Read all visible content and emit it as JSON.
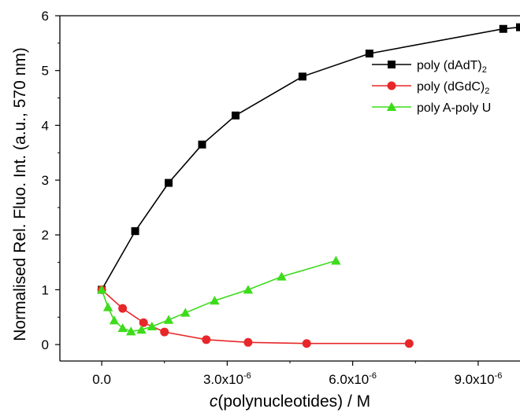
{
  "chart_data": {
    "type": "line",
    "title": "",
    "xlabel": {
      "italic": "c",
      "rest": "(polynucleotides) / M"
    },
    "ylabel": "Normalised Rel. Fluo. Int. (a.u., 570 nm)",
    "xlim": [
      -1e-06,
      1e-05
    ],
    "ylim": [
      -0.3,
      6
    ],
    "x_ticks": [
      {
        "value": 0,
        "mantissa": "0.0",
        "exponent": ""
      },
      {
        "value": 3e-06,
        "mantissa": "3.0x10",
        "exponent": "-6"
      },
      {
        "value": 6e-06,
        "mantissa": "6.0x10",
        "exponent": "-6"
      },
      {
        "value": 9e-06,
        "mantissa": "9.0x10",
        "exponent": "-6"
      }
    ],
    "y_ticks": [
      {
        "value": 0,
        "label": "0"
      },
      {
        "value": 1,
        "label": "1"
      },
      {
        "value": 2,
        "label": "2"
      },
      {
        "value": 3,
        "label": "3"
      },
      {
        "value": 4,
        "label": "4"
      },
      {
        "value": 5,
        "label": "5"
      },
      {
        "value": 6,
        "label": "6"
      }
    ],
    "grid": false,
    "legend_position": "top-right",
    "series": [
      {
        "name": "poly (dAdT)",
        "name_sub": "2",
        "color": "#000000",
        "marker": "square",
        "x": [
          0,
          8e-07,
          1.6e-06,
          2.4e-06,
          3.2e-06,
          4.8e-06,
          6.4e-06,
          9.6e-06,
          1e-05
        ],
        "y": [
          1.0,
          2.07,
          2.95,
          3.65,
          4.18,
          4.89,
          5.31,
          5.76,
          5.79
        ]
      },
      {
        "name": "poly (dGdC)",
        "name_sub": "2",
        "color": "#e8272a",
        "marker": "circle",
        "x": [
          0,
          5e-07,
          1e-06,
          1.5e-06,
          2.5e-06,
          3.5e-06,
          4.9e-06,
          7.35e-06
        ],
        "y": [
          1.0,
          0.66,
          0.4,
          0.23,
          0.09,
          0.04,
          0.02,
          0.02
        ]
      },
      {
        "name": "poly A-poly U",
        "name_sub": "",
        "color": "#3ddc1b",
        "marker": "triangle",
        "x": [
          0,
          1.5e-07,
          3e-07,
          5e-07,
          7e-07,
          9.5e-07,
          1.2e-06,
          1.6e-06,
          2e-06,
          2.7e-06,
          3.5e-06,
          4.3e-06,
          5.6e-06
        ],
        "y": [
          1.0,
          0.68,
          0.44,
          0.3,
          0.24,
          0.27,
          0.33,
          0.45,
          0.58,
          0.8,
          1.0,
          1.24,
          1.53
        ]
      }
    ]
  }
}
